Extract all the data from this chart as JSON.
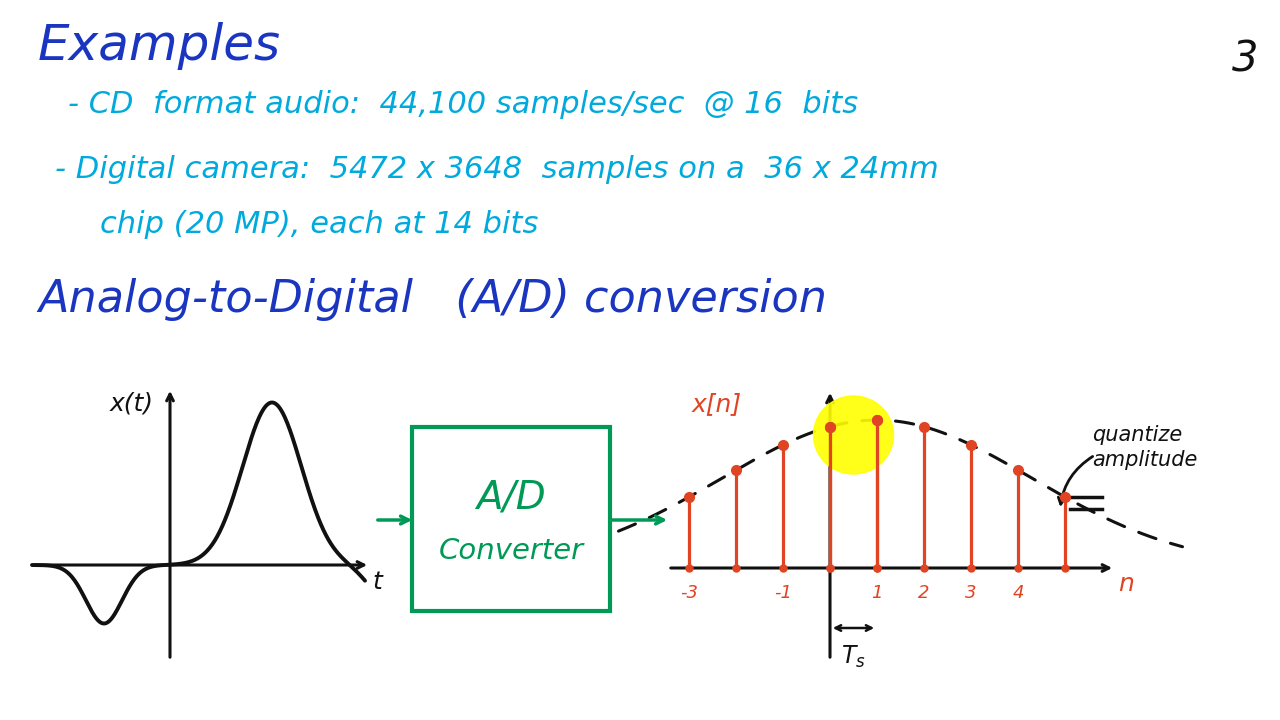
{
  "bg_color": "#ffffff",
  "title_number": "3",
  "examples_text": "Examples",
  "bullet1": "- CD  format audio:  44,100 samples/sec  @ 16  bits",
  "bullet2": "- Digital camera:  5472 x 3648  samples on a  36 x 24mm",
  "bullet2b": "chip (20 MP), each at 14 bits",
  "ad_title": "Analog-to-Digital   (A/D) conversion",
  "xt_label": "x(t)",
  "t_label": "t",
  "xn_label": "x[n]",
  "n_label": "n",
  "ts_label": "Ts",
  "ad_box_text1": "A/D",
  "ad_box_text2": "Converter",
  "quantize_text1": "quantize",
  "quantize_text2": "amplitude",
  "blue_color": "#1a35c0",
  "cyan_color": "#00aadd",
  "green_color": "#009955",
  "red_color": "#e04422",
  "black_color": "#111111",
  "yellow_color": "#ffff00",
  "figsize": [
    12.8,
    7.2
  ],
  "dpi": 100
}
